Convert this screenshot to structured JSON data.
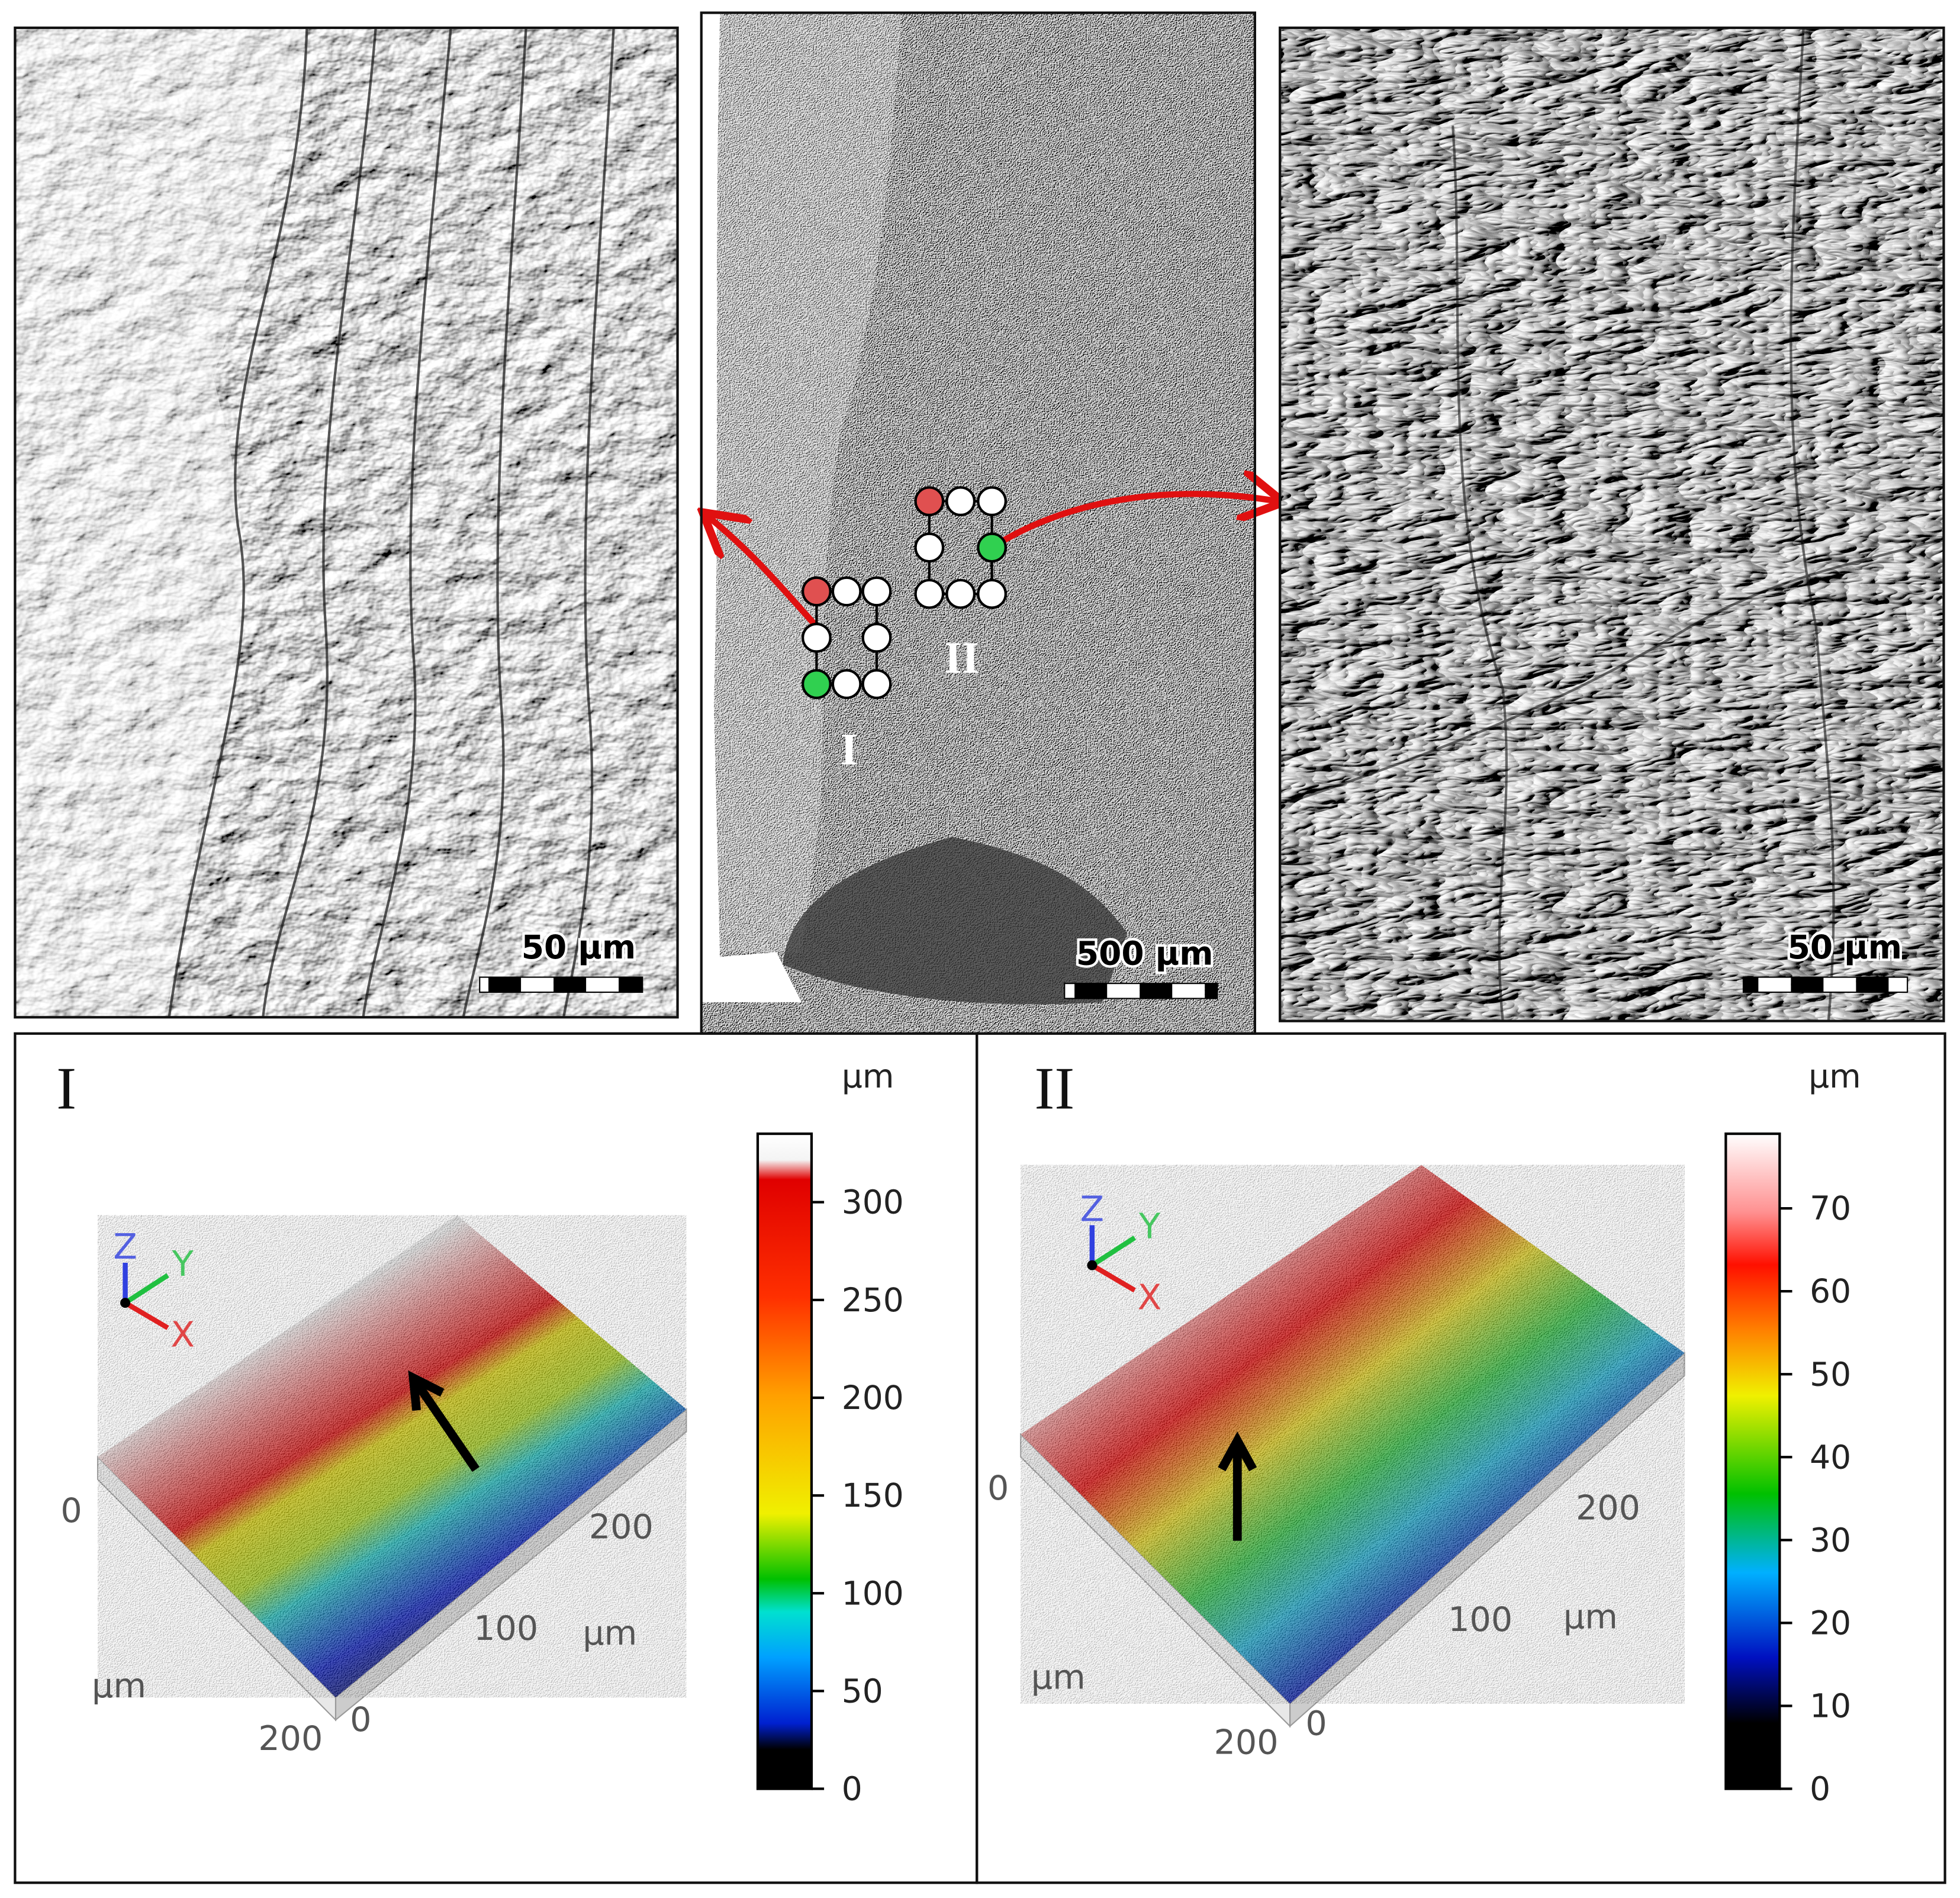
{
  "micrographs": {
    "left": {
      "scale_bar": "50 µm"
    },
    "center": {
      "scale_bar": "500 µm",
      "regions": [
        "I",
        "II"
      ]
    },
    "right": {
      "scale_bar": "50 µm"
    }
  },
  "topographies": [
    {
      "label": "I",
      "colorbar": {
        "unit": "µm",
        "lim": [
          0,
          335
        ],
        "ticks": [
          0,
          50,
          100,
          150,
          200,
          250,
          300
        ]
      },
      "axis_triad": [
        "Z",
        "Y",
        "X"
      ],
      "axis_a": {
        "ticks": [
          0,
          100,
          200
        ],
        "label": "µm"
      },
      "axis_b": {
        "ticks": [
          0,
          200
        ],
        "label": "µm"
      }
    },
    {
      "label": "II",
      "colorbar": {
        "unit": "µm",
        "lim": [
          0,
          79
        ],
        "ticks": [
          0,
          10,
          20,
          30,
          40,
          50,
          60,
          70
        ]
      },
      "axis_triad": [
        "Z",
        "Y",
        "X"
      ],
      "axis_a": {
        "ticks": [
          0,
          100,
          200
        ],
        "label": "µm"
      },
      "axis_b": {
        "ticks": [
          0,
          200
        ],
        "label": "µm"
      }
    }
  ]
}
